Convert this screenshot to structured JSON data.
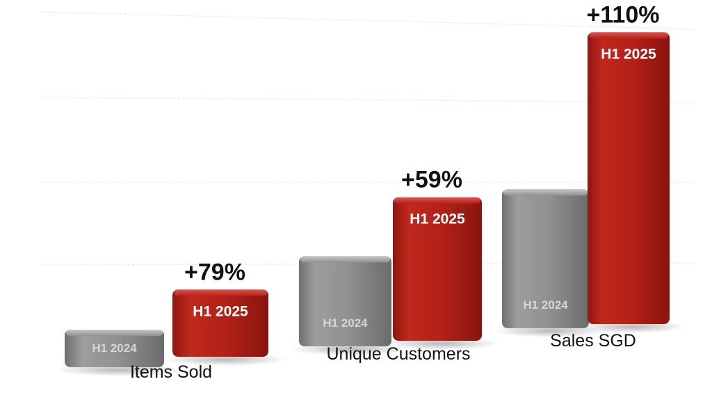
{
  "chart_data": {
    "type": "bar",
    "categories": [
      "Items Sold",
      "Unique Customers",
      "Sales SGD"
    ],
    "series": [
      {
        "name": "H1 2024",
        "values": [
          1.0,
          2.4,
          3.7
        ]
      },
      {
        "name": "H1 2025",
        "values": [
          1.79,
          3.82,
          7.77
        ]
      }
    ],
    "annotations": [
      "+79%",
      "+59%",
      "+110%"
    ],
    "ylim": [
      0,
      8
    ],
    "grid": true,
    "legend": "none",
    "colors": {
      "h1_2024": "#8f9190",
      "h1_2025": "#b32118",
      "label_text": "#111111",
      "bar_text": "#ffffff"
    }
  }
}
